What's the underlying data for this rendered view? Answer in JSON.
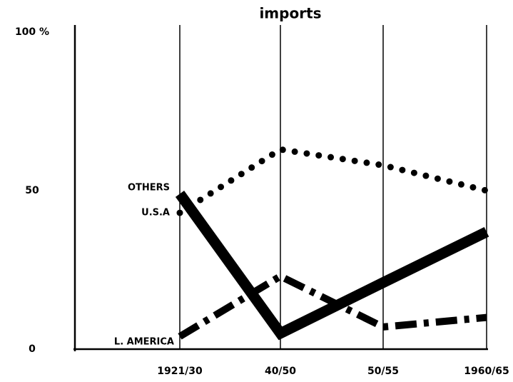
{
  "chart_data": {
    "type": "line",
    "title": "imports",
    "categories": [
      "1921/30",
      "40/50",
      "50/55",
      "1960/65"
    ],
    "series": [
      {
        "name": "OTHERS",
        "color": "#000000",
        "style": "dotted",
        "values": [
          43,
          63,
          58,
          50
        ]
      },
      {
        "name": "U.S.A",
        "color": "#000000",
        "style": "solid",
        "values": [
          49,
          5,
          21,
          37
        ]
      },
      {
        "name": "L. AMERICA",
        "color": "#000000",
        "style": "dashdot",
        "values": [
          4,
          23,
          7,
          10
        ]
      }
    ],
    "ylim": [
      0,
      100
    ],
    "yticks": [
      0,
      50,
      {
        "value": 100,
        "label": "100 %"
      }
    ]
  }
}
